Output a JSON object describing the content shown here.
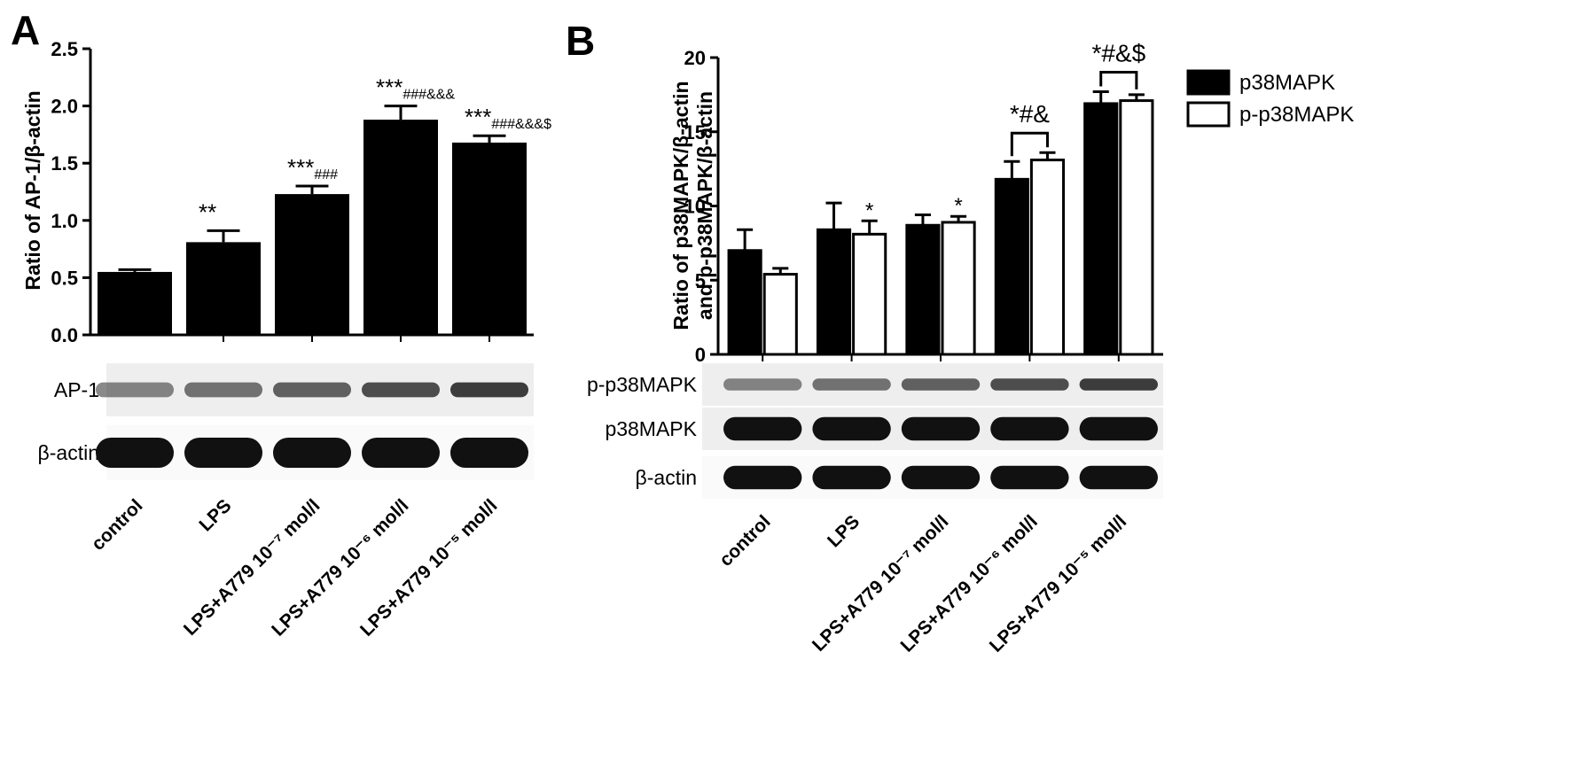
{
  "chart_data": [
    {
      "type": "bar",
      "panel": "A",
      "ylabel": "Ratio of AP-1/β-actin",
      "categories": [
        "control",
        "LPS",
        "LPS+A779 10⁻⁷ mol/l",
        "LPS+A779 10⁻⁶ mol/l",
        "LPS+A779 10⁻⁵ mol/l"
      ],
      "values": [
        0.55,
        0.81,
        1.23,
        1.88,
        1.68
      ],
      "errors": [
        0.02,
        0.1,
        0.07,
        0.12,
        0.06
      ],
      "color": "#000000",
      "significance": [
        null,
        {
          "main": "**"
        },
        {
          "main": "***",
          "sub": "###"
        },
        {
          "main": "***",
          "sub": "###&&&"
        },
        {
          "main": "***",
          "sub": "###&&&$"
        }
      ],
      "ylim": [
        0,
        2.5
      ],
      "yticks": [
        {
          "value": 0,
          "label": "0.0"
        },
        0.5,
        {
          "value": 1,
          "label": "1.0"
        },
        1.5,
        {
          "value": 2,
          "label": "2.0"
        },
        2.5
      ],
      "blots": [
        "AP-1",
        "β-actin"
      ]
    },
    {
      "type": "grouped_bar",
      "panel": "B",
      "ylabel": [
        "Ratio of p38MAPK/β-actin",
        "and p-p38MAPK/β-actin"
      ],
      "categories": [
        "control",
        "LPS",
        "LPS+A779 10⁻⁷ mol/l",
        "LPS+A779 10⁻⁶ mol/l",
        "LPS+A779 10⁻⁵ mol/l"
      ],
      "series": [
        {
          "name": "p38MAPK",
          "color": "#000000",
          "values": [
            7.0,
            8.4,
            8.7,
            11.8,
            16.9
          ],
          "errors": [
            1.4,
            1.8,
            0.7,
            1.2,
            0.8
          ]
        },
        {
          "name": "p-p38MAPK",
          "color": "#ffffff",
          "values": [
            5.4,
            8.1,
            8.9,
            13.1,
            17.1
          ],
          "errors": [
            0.4,
            0.9,
            0.4,
            0.5,
            0.4
          ],
          "significance": [
            null,
            "*",
            "*",
            null,
            null
          ]
        }
      ],
      "brackets": [
        null,
        null,
        null,
        "*#&",
        "*#&$"
      ],
      "ylim": [
        0,
        20
      ],
      "yticks": [
        0,
        5,
        10,
        15,
        20
      ],
      "legend": "right",
      "blots": [
        "p-p38MAPK",
        "p38MAPK",
        "β-actin"
      ]
    }
  ]
}
